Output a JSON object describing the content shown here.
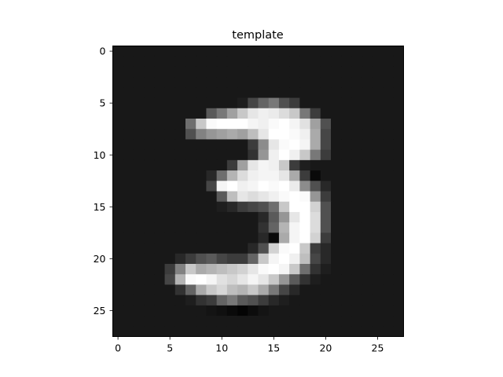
{
  "chart_data": {
    "type": "heatmap",
    "title": "template",
    "xlabel": "",
    "ylabel": "",
    "colormap": "gray",
    "rows": 28,
    "cols": 28,
    "xlim": [
      -0.5,
      27.5
    ],
    "ylim": [
      27.5,
      -0.5
    ],
    "grid": false,
    "x_ticks": [
      "0",
      "5",
      "10",
      "15",
      "20",
      "25"
    ],
    "y_ticks": [
      "0",
      "5",
      "10",
      "15",
      "20",
      "25"
    ],
    "value_range": [
      0,
      255
    ],
    "background_level": 24,
    "strokes": [
      {
        "row": 5,
        "cols": [
          12,
          17
        ],
        "values": [
          30,
          70,
          100,
          120,
          80,
          60
        ]
      },
      {
        "row": 6,
        "cols": [
          9,
          19
        ],
        "values": [
          90,
          120,
          160,
          200,
          230,
          240,
          235,
          220,
          200,
          120,
          60
        ]
      },
      {
        "row": 7,
        "cols": [
          7,
          20
        ],
        "values": [
          110,
          200,
          250,
          255,
          255,
          255,
          245,
          240,
          250,
          255,
          245,
          225,
          160,
          80
        ]
      },
      {
        "row": 8,
        "cols": [
          7,
          20
        ],
        "values": [
          80,
          130,
          150,
          160,
          170,
          160,
          190,
          230,
          255,
          255,
          250,
          240,
          170,
          70
        ]
      },
      {
        "row": 9,
        "cols": [
          13,
          20
        ],
        "values": [
          60,
          140,
          230,
          250,
          255,
          245,
          170,
          70
        ]
      },
      {
        "row": 10,
        "cols": [
          13,
          20
        ],
        "values": [
          50,
          150,
          240,
          255,
          240,
          200,
          120,
          60
        ]
      },
      {
        "row": 11,
        "cols": [
          11,
          18
        ],
        "values": [
          60,
          160,
          230,
          245,
          240,
          200,
          60,
          30
        ]
      },
      {
        "row": 12,
        "cols": [
          9,
          19
        ],
        "values": [
          40,
          110,
          180,
          220,
          240,
          245,
          245,
          230,
          170,
          60,
          10
        ]
      },
      {
        "row": 13,
        "cols": [
          9,
          20
        ],
        "values": [
          70,
          245,
          255,
          240,
          245,
          255,
          250,
          255,
          235,
          140,
          80,
          40
        ]
      },
      {
        "row": 14,
        "cols": [
          10,
          20
        ],
        "values": [
          90,
          190,
          230,
          220,
          230,
          240,
          250,
          255,
          250,
          150,
          60
        ]
      },
      {
        "row": 15,
        "cols": [
          10,
          20
        ],
        "values": [
          30,
          40,
          60,
          70,
          80,
          110,
          200,
          255,
          255,
          210,
          80
        ]
      },
      {
        "row": 16,
        "cols": [
          14,
          20
        ],
        "values": [
          40,
          90,
          150,
          230,
          255,
          220,
          80
        ]
      },
      {
        "row": 17,
        "cols": [
          14,
          20
        ],
        "values": [
          50,
          100,
          180,
          245,
          255,
          220,
          80
        ]
      },
      {
        "row": 18,
        "cols": [
          14,
          20
        ],
        "values": [
          40,
          10,
          170,
          245,
          255,
          210,
          60
        ]
      },
      {
        "row": 19,
        "cols": [
          13,
          20
        ],
        "values": [
          40,
          80,
          210,
          250,
          255,
          200,
          60,
          40
        ]
      },
      {
        "row": 20,
        "cols": [
          6,
          20
        ],
        "values": [
          40,
          60,
          80,
          90,
          70,
          60,
          60,
          100,
          200,
          245,
          255,
          240,
          190,
          70,
          40
        ]
      },
      {
        "row": 21,
        "cols": [
          5,
          20
        ],
        "values": [
          60,
          130,
          200,
          170,
          180,
          190,
          200,
          210,
          230,
          250,
          255,
          245,
          200,
          110,
          50,
          30
        ]
      },
      {
        "row": 22,
        "cols": [
          5,
          19
        ],
        "values": [
          70,
          180,
          250,
          255,
          245,
          225,
          215,
          230,
          245,
          230,
          200,
          150,
          90,
          50,
          30
        ]
      },
      {
        "row": 23,
        "cols": [
          6,
          17
        ],
        "values": [
          50,
          100,
          170,
          200,
          215,
          190,
          180,
          200,
          170,
          120,
          70,
          40
        ]
      },
      {
        "row": 24,
        "cols": [
          7,
          16
        ],
        "values": [
          30,
          50,
          60,
          100,
          120,
          90,
          80,
          60,
          40,
          30
        ]
      },
      {
        "row": 25,
        "cols": [
          9,
          14
        ],
        "values": [
          20,
          16,
          10,
          4,
          12,
          20
        ]
      }
    ]
  }
}
